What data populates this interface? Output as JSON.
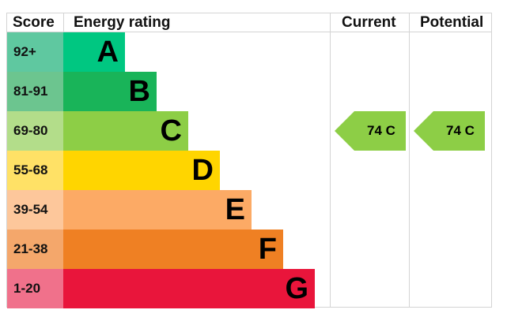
{
  "chart_data": {
    "type": "bar",
    "headers": {
      "score": "Score",
      "rating": "Energy rating",
      "current": "Current",
      "potential": "Potential"
    },
    "bands": [
      {
        "letter": "A",
        "range": "92+",
        "color": "#00c781",
        "score_color": "#5fc8a0"
      },
      {
        "letter": "B",
        "range": "81-91",
        "color": "#19b459",
        "score_color": "#6cc58f"
      },
      {
        "letter": "C",
        "range": "69-80",
        "color": "#8dce46",
        "score_color": "#b3dd8a"
      },
      {
        "letter": "D",
        "range": "55-68",
        "color": "#ffd500",
        "score_color": "#ffe166"
      },
      {
        "letter": "E",
        "range": "39-54",
        "color": "#fcaa65",
        "score_color": "#fdc79b"
      },
      {
        "letter": "F",
        "range": "21-38",
        "color": "#ef8023",
        "score_color": "#f4a76b"
      },
      {
        "letter": "G",
        "range": "1-20",
        "color": "#e9153b",
        "score_color": "#f0718b"
      }
    ],
    "current": {
      "value": 74,
      "band": "C",
      "label": "74  C"
    },
    "potential": {
      "value": 74,
      "band": "C",
      "label": "74  C"
    }
  }
}
